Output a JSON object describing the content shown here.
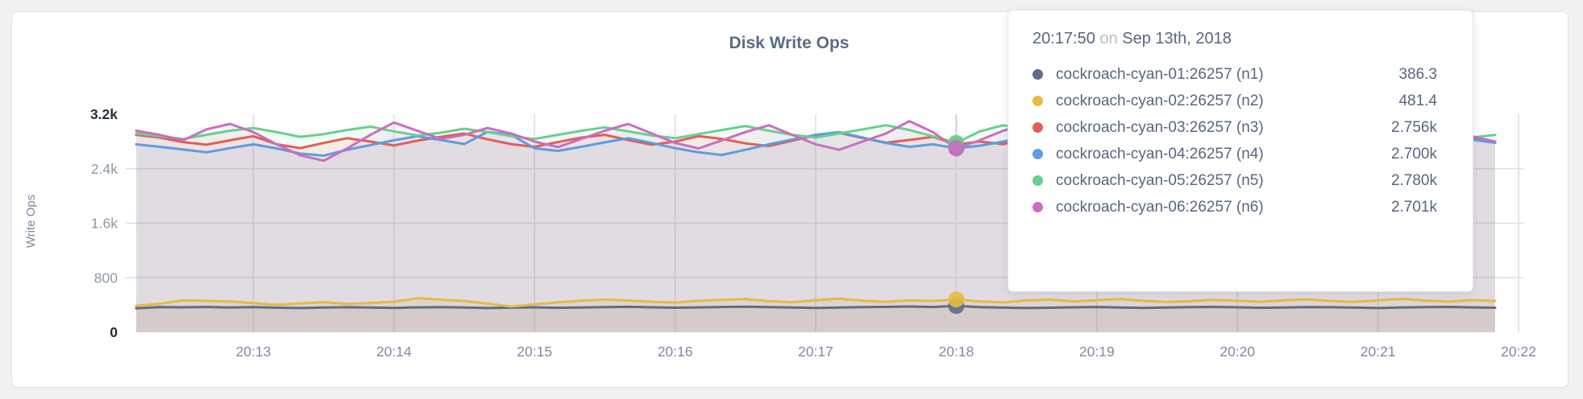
{
  "card": {
    "title": "Disk Write Ops"
  },
  "y_axis": {
    "label": "Write Ops",
    "ticks": [
      {
        "value": 0,
        "label": "0",
        "emphasis": true
      },
      {
        "value": 800,
        "label": "800",
        "emphasis": false
      },
      {
        "value": 1600,
        "label": "1.6k",
        "emphasis": false
      },
      {
        "value": 2400,
        "label": "2.4k",
        "emphasis": false
      },
      {
        "value": 3200,
        "label": "3.2k",
        "emphasis": true
      }
    ]
  },
  "x_axis": {
    "ticks": [
      {
        "label": "20:13",
        "seconds_from_start": 50
      },
      {
        "label": "20:14",
        "seconds_from_start": 110
      },
      {
        "label": "20:15",
        "seconds_from_start": 170
      },
      {
        "label": "20:16",
        "seconds_from_start": 230
      },
      {
        "label": "20:17",
        "seconds_from_start": 290
      },
      {
        "label": "20:18",
        "seconds_from_start": 350
      },
      {
        "label": "20:19",
        "seconds_from_start": 410
      },
      {
        "label": "20:20",
        "seconds_from_start": 470
      },
      {
        "label": "20:21",
        "seconds_from_start": 530
      },
      {
        "label": "20:22",
        "seconds_from_start": 590
      }
    ]
  },
  "tooltip": {
    "time": "20:17:50",
    "connector": "on",
    "date": "Sep 13th, 2018"
  },
  "chart_data": {
    "type": "line",
    "title": "Disk Write Ops",
    "ylabel": "Write Ops",
    "ylim": [
      0,
      3200
    ],
    "grid": true,
    "x_start_time": "20:12:10",
    "x_step_seconds": 10,
    "x_tick_labels": [
      "20:13",
      "20:14",
      "20:15",
      "20:16",
      "20:17",
      "20:18",
      "20:19",
      "20:20",
      "20:21",
      "20:22"
    ],
    "hover_index": 35,
    "hover_time": "20:17:50",
    "series": [
      {
        "name": "cockroach-cyan-01:26257 (n1)",
        "color": "#5f6c87",
        "fill_opacity": 0.1,
        "tooltip_value": "386.3",
        "values": [
          352,
          368,
          366,
          371,
          364,
          369,
          360,
          355,
          362,
          367,
          363,
          358,
          365,
          370,
          362,
          356,
          361,
          366,
          359,
          364,
          370,
          373,
          366,
          360,
          365,
          371,
          375,
          368,
          362,
          357,
          363,
          368,
          372,
          378,
          371,
          386,
          369,
          361,
          355,
          360,
          366,
          371,
          364,
          358,
          363,
          369,
          372,
          366,
          359,
          364,
          370,
          367,
          361,
          356,
          362,
          368,
          372,
          365,
          360
        ]
      },
      {
        "name": "cockroach-cyan-02:26257 (n2)",
        "color": "#e7ba41",
        "fill_opacity": 0.12,
        "tooltip_value": "481.4",
        "values": [
          388,
          418,
          468,
          462,
          452,
          428,
          402,
          422,
          442,
          415,
          428,
          448,
          498,
          478,
          458,
          420,
          378,
          408,
          438,
          462,
          480,
          465,
          448,
          436,
          462,
          476,
          488,
          458,
          441,
          470,
          492,
          464,
          447,
          468,
          459,
          481,
          452,
          438,
          466,
          478,
          455,
          470,
          486,
          461,
          444,
          457,
          476,
          462,
          449,
          470,
          483,
          459,
          446,
          468,
          490,
          465,
          450,
          472,
          460
        ]
      },
      {
        "name": "cockroach-cyan-03:26257 (n3)",
        "color": "#e35e56",
        "fill_opacity": 0.085,
        "tooltip_value": "2.756k",
        "values": [
          2898,
          2858,
          2792,
          2752,
          2818,
          2878,
          2760,
          2702,
          2778,
          2848,
          2798,
          2742,
          2812,
          2868,
          2918,
          2832,
          2762,
          2722,
          2792,
          2858,
          2898,
          2822,
          2752,
          2798,
          2878,
          2838,
          2772,
          2732,
          2812,
          2888,
          2928,
          2852,
          2782,
          2822,
          2868,
          2756,
          2798,
          2762,
          2838,
          2898,
          2832,
          2772,
          2722,
          2798,
          2858,
          2908,
          2838,
          2782,
          2742,
          2812,
          2878,
          2918,
          2848,
          2792,
          2752,
          2818,
          2888,
          2858,
          2798
        ]
      },
      {
        "name": "cockroach-cyan-04:26257 (n4)",
        "color": "#5d9ce0",
        "fill_opacity": 0.085,
        "tooltip_value": "2.700k",
        "values": [
          2758,
          2722,
          2682,
          2642,
          2702,
          2758,
          2698,
          2622,
          2592,
          2678,
          2748,
          2818,
          2878,
          2822,
          2762,
          2942,
          2898,
          2702,
          2662,
          2722,
          2788,
          2848,
          2778,
          2702,
          2642,
          2602,
          2678,
          2758,
          2828,
          2898,
          2938,
          2858,
          2778,
          2722,
          2758,
          2700,
          2738,
          2798,
          2868,
          2818,
          2748,
          2688,
          2642,
          2708,
          2778,
          2848,
          2798,
          2728,
          2668,
          2702,
          2768,
          2838,
          2888,
          2808,
          2738,
          2702,
          2758,
          2828,
          2778
        ]
      },
      {
        "name": "cockroach-cyan-05:26257 (n5)",
        "color": "#68d08e",
        "fill_opacity": 0.085,
        "tooltip_value": "2.780k",
        "values": [
          2918,
          2878,
          2838,
          2898,
          2958,
          2998,
          2938,
          2868,
          2908,
          2968,
          3018,
          2948,
          2888,
          2928,
          2988,
          2938,
          2878,
          2838,
          2898,
          2958,
          3008,
          2948,
          2888,
          2848,
          2908,
          2968,
          3028,
          2958,
          2898,
          2858,
          2918,
          2978,
          3038,
          2968,
          2878,
          2780,
          2948,
          3038,
          2978,
          2898,
          2848,
          2908,
          2958,
          3008,
          2938,
          2878,
          2838,
          2898,
          2948,
          2998,
          2928,
          2868,
          2828,
          2888,
          2938,
          2988,
          2918,
          2858,
          2898
        ]
      },
      {
        "name": "cockroach-cyan-06:26257 (n6)",
        "color": "#cb6ec0",
        "fill_opacity": 0.085,
        "tooltip_value": "2.701k",
        "values": [
          2958,
          2898,
          2818,
          2978,
          3058,
          2938,
          2758,
          2598,
          2518,
          2698,
          2898,
          3078,
          2958,
          2838,
          2898,
          2998,
          2918,
          2798,
          2718,
          2838,
          2958,
          3058,
          2918,
          2778,
          2698,
          2818,
          2938,
          3038,
          2898,
          2758,
          2678,
          2798,
          2918,
          3098,
          2938,
          2701,
          2818,
          2958,
          3058,
          2918,
          2778,
          2698,
          2818,
          2948,
          3078,
          2938,
          2798,
          2718,
          2838,
          2958,
          3048,
          2898,
          2758,
          2688,
          2808,
          2928,
          3018,
          2878,
          2798
        ]
      }
    ]
  }
}
